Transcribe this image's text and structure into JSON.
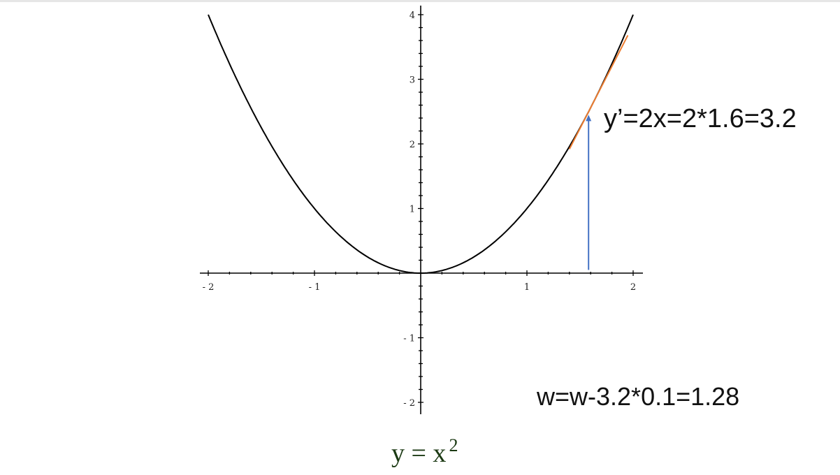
{
  "chart_data": {
    "type": "line",
    "title": "y = x",
    "title_exponent": "2",
    "function": "y = x^2",
    "xlim": [
      -2,
      2
    ],
    "ylim": [
      -2,
      4
    ],
    "x_ticks": [
      {
        "value": -2,
        "label": "- 2"
      },
      {
        "value": -1,
        "label": "- 1"
      },
      {
        "value": 1,
        "label": "1"
      },
      {
        "value": 2,
        "label": "2"
      }
    ],
    "y_ticks": [
      {
        "value": -2,
        "label": "- 2"
      },
      {
        "value": -1,
        "label": "- 1"
      },
      {
        "value": 1,
        "label": "1"
      },
      {
        "value": 2,
        "label": "2"
      },
      {
        "value": 3,
        "label": "3"
      },
      {
        "value": 4,
        "label": "4"
      }
    ],
    "minor_tick_step": 0.2,
    "grid": false,
    "series": [
      {
        "color": "#000000",
        "x_range": [
          -2,
          2
        ]
      }
    ],
    "tangent": {
      "at_x": 1.6,
      "slope": 3.2,
      "x_range": [
        1.4,
        1.95
      ],
      "color": "#ed7d31"
    },
    "arrow": {
      "x": 1.6,
      "from_y": 0.05,
      "to_y": 2.45,
      "color": "#4472c4"
    },
    "annotations": {
      "derivative": "y’=2x=2*1.6=3.2",
      "update": "w=w-3.2*0.1=1.28"
    }
  }
}
